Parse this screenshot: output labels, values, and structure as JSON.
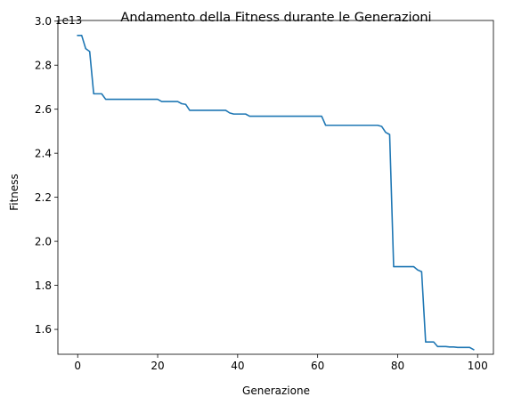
{
  "chart_data": {
    "type": "line",
    "title": "Andamento della Fitness durante le Generazioni",
    "xlabel": "Generazione",
    "ylabel": "Fitness",
    "y_offset_label": "1e13",
    "xlim": [
      -4.95,
      103.95
    ],
    "ylim": [
      1.487,
      3.003
    ],
    "xticks": [
      0,
      20,
      40,
      60,
      80,
      100
    ],
    "xtick_labels": [
      "0",
      "20",
      "40",
      "60",
      "80",
      "100"
    ],
    "yticks": [
      1.6,
      1.8,
      2.0,
      2.2,
      2.4,
      2.6,
      2.8,
      3.0
    ],
    "ytick_labels": [
      "1.6",
      "1.8",
      "2.0",
      "2.2",
      "2.4",
      "2.6",
      "2.8",
      "3.0"
    ],
    "grid": false,
    "line_color": "#1f77b4",
    "series": [
      {
        "x": [
          0,
          1,
          2,
          3,
          4,
          5,
          6,
          7,
          8,
          9,
          10,
          11,
          12,
          13,
          14,
          15,
          16,
          17,
          18,
          19,
          20,
          21,
          22,
          23,
          24,
          25,
          26,
          27,
          28,
          29,
          30,
          31,
          32,
          33,
          34,
          35,
          36,
          37,
          38,
          39,
          40,
          41,
          42,
          43,
          44,
          45,
          46,
          47,
          48,
          49,
          50,
          51,
          52,
          53,
          54,
          55,
          56,
          57,
          58,
          59,
          60,
          61,
          62,
          63,
          64,
          65,
          66,
          67,
          68,
          69,
          70,
          71,
          72,
          73,
          74,
          75,
          76,
          77,
          78,
          79,
          80,
          81,
          82,
          83,
          84,
          85,
          86,
          87,
          88,
          89,
          90,
          91,
          92,
          93,
          94,
          95,
          96,
          97,
          98,
          99
        ],
        "y": [
          2.935,
          2.935,
          2.875,
          2.862,
          2.67,
          2.67,
          2.67,
          2.645,
          2.645,
          2.645,
          2.645,
          2.645,
          2.645,
          2.645,
          2.645,
          2.645,
          2.645,
          2.645,
          2.645,
          2.645,
          2.645,
          2.635,
          2.635,
          2.635,
          2.635,
          2.635,
          2.625,
          2.622,
          2.595,
          2.595,
          2.595,
          2.595,
          2.595,
          2.595,
          2.595,
          2.595,
          2.595,
          2.595,
          2.583,
          2.578,
          2.578,
          2.578,
          2.578,
          2.568,
          2.568,
          2.568,
          2.568,
          2.568,
          2.568,
          2.568,
          2.568,
          2.568,
          2.568,
          2.568,
          2.568,
          2.568,
          2.568,
          2.568,
          2.568,
          2.568,
          2.568,
          2.568,
          2.527,
          2.527,
          2.527,
          2.527,
          2.527,
          2.527,
          2.527,
          2.527,
          2.527,
          2.527,
          2.527,
          2.527,
          2.527,
          2.527,
          2.522,
          2.495,
          2.485,
          1.885,
          1.885,
          1.885,
          1.885,
          1.885,
          1.885,
          1.87,
          1.862,
          1.543,
          1.543,
          1.543,
          1.522,
          1.522,
          1.522,
          1.52,
          1.52,
          1.518,
          1.518,
          1.518,
          1.518,
          1.508
        ]
      }
    ]
  }
}
